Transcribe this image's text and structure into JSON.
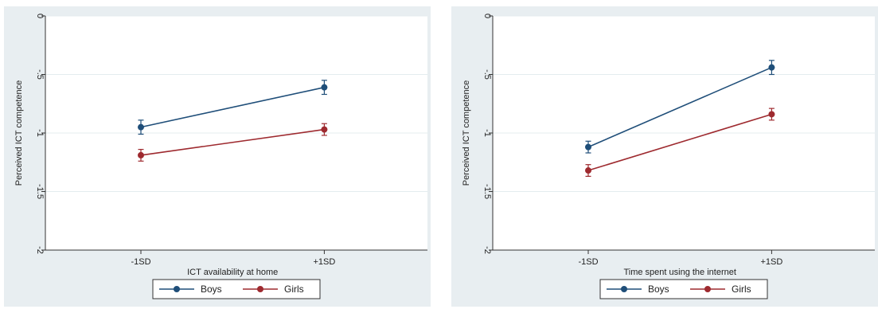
{
  "colors": {
    "boys": "#1f4e79",
    "girls": "#9e2a2f",
    "panel_bg": "#e8eef1",
    "plot_bg": "#ffffff",
    "grid": "#e4ecef",
    "axis": "#333333"
  },
  "chart_data": [
    {
      "type": "line",
      "xlabel": "ICT availability at home",
      "ylabel": "Perceived ICT competence",
      "categories": [
        "-1SD",
        "+1SD"
      ],
      "ylim": [
        -2,
        0
      ],
      "yticks": [
        0,
        -0.5,
        -1,
        -1.5,
        -2
      ],
      "ytick_labels": [
        "0",
        "-.5",
        "-1",
        "-1.5",
        "-2"
      ],
      "grid": true,
      "legend_position": "bottom",
      "series": [
        {
          "name": "Boys",
          "color_key": "boys",
          "values": [
            -0.95,
            -0.61
          ],
          "ci": [
            [
              -1.01,
              -0.89
            ],
            [
              -0.67,
              -0.55
            ]
          ]
        },
        {
          "name": "Girls",
          "color_key": "girls",
          "values": [
            -1.19,
            -0.97
          ],
          "ci": [
            [
              -1.24,
              -1.14
            ],
            [
              -1.02,
              -0.92
            ]
          ]
        }
      ]
    },
    {
      "type": "line",
      "xlabel": "Time spent using the internet",
      "ylabel": "Perceived ICT competence",
      "categories": [
        "-1SD",
        "+1SD"
      ],
      "ylim": [
        -2,
        0
      ],
      "yticks": [
        0,
        -0.5,
        -1,
        -1.5,
        -2
      ],
      "ytick_labels": [
        "0",
        "-.5",
        "-1",
        "-1.5",
        "-2"
      ],
      "grid": true,
      "legend_position": "bottom",
      "series": [
        {
          "name": "Boys",
          "color_key": "boys",
          "values": [
            -1.12,
            -0.44
          ],
          "ci": [
            [
              -1.17,
              -1.07
            ],
            [
              -0.5,
              -0.38
            ]
          ]
        },
        {
          "name": "Girls",
          "color_key": "girls",
          "values": [
            -1.32,
            -0.84
          ],
          "ci": [
            [
              -1.37,
              -1.27
            ],
            [
              -0.89,
              -0.79
            ]
          ]
        }
      ]
    }
  ]
}
